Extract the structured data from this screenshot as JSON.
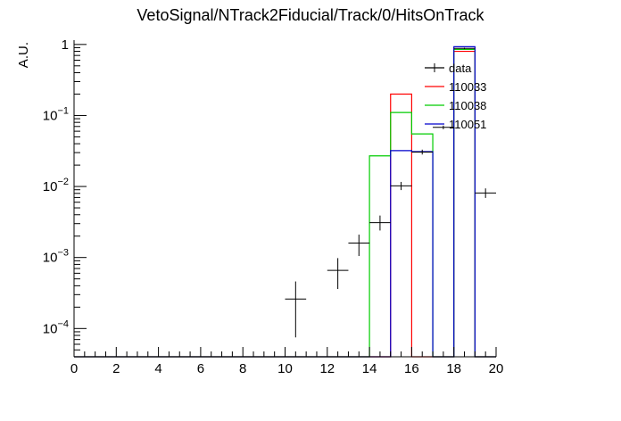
{
  "chart_data": {
    "type": "histogram",
    "title": "VetoSignal/NTrack2Fiducial/Track/0/HitsOnTrack",
    "xlabel": "",
    "ylabel": "A.U.",
    "xlim": [
      0,
      20
    ],
    "ylim": [
      4e-05,
      1.15
    ],
    "yscale": "log",
    "grid": false,
    "legend_position": "top-right",
    "x_ticks": [
      0,
      2,
      4,
      6,
      8,
      10,
      12,
      14,
      16,
      18,
      20
    ],
    "y_ticks": [
      {
        "value": 1,
        "base": "1",
        "exp": ""
      },
      {
        "value": 0.1,
        "base": "10",
        "exp": "−1"
      },
      {
        "value": 0.01,
        "base": "10",
        "exp": "−2"
      },
      {
        "value": 0.001,
        "base": "10",
        "exp": "−3"
      },
      {
        "value": 0.0001,
        "base": "10",
        "exp": "−4"
      }
    ],
    "bin_edges": [
      0,
      1,
      2,
      3,
      4,
      5,
      6,
      7,
      8,
      9,
      10,
      11,
      12,
      13,
      14,
      15,
      16,
      17,
      18,
      19,
      20
    ],
    "series": [
      {
        "name": "110033",
        "color": "#ff0000",
        "kind": "hist",
        "values": [
          0,
          0,
          0,
          0,
          0,
          0,
          0,
          0,
          0,
          0,
          0,
          0,
          0,
          0,
          0,
          0.2,
          0,
          0,
          0.8,
          0
        ]
      },
      {
        "name": "110038",
        "color": "#00cc00",
        "kind": "hist",
        "values": [
          0,
          0,
          0,
          0,
          0,
          0,
          0,
          0,
          0,
          0,
          0,
          0,
          0,
          0,
          0.027,
          0.11,
          0.055,
          0,
          0.85,
          0
        ]
      },
      {
        "name": "110051",
        "color": "#0000cc",
        "kind": "hist",
        "values": [
          0,
          0,
          0,
          0,
          0,
          0,
          0,
          0,
          0,
          0,
          0,
          0,
          0,
          0,
          0,
          0.032,
          0.031,
          0,
          0.93,
          0
        ]
      },
      {
        "name": "data",
        "color": "#000000",
        "kind": "points",
        "points": [
          {
            "x": 10.5,
            "y": 0.00026,
            "ylow": 7.5e-05,
            "yhigh": 0.00046
          },
          {
            "x": 12.5,
            "y": 0.00066,
            "ylow": 0.00036,
            "yhigh": 0.00098
          },
          {
            "x": 13.5,
            "y": 0.0016,
            "ylow": 0.00105,
            "yhigh": 0.0021
          },
          {
            "x": 14.5,
            "y": 0.0031,
            "ylow": 0.0024,
            "yhigh": 0.0039
          },
          {
            "x": 15.5,
            "y": 0.0102,
            "ylow": 0.0089,
            "yhigh": 0.0116
          },
          {
            "x": 16.5,
            "y": 0.0305,
            "ylow": 0.0282,
            "yhigh": 0.033
          },
          {
            "x": 17.5,
            "y": 0.068,
            "ylow": 0.064,
            "yhigh": 0.072
          },
          {
            "x": 18.5,
            "y": 0.88,
            "ylow": 0.86,
            "yhigh": 0.9
          },
          {
            "x": 19.5,
            "y": 0.0081,
            "ylow": 0.0069,
            "yhigh": 0.0094
          }
        ]
      }
    ],
    "legend_entries": [
      "data",
      "110033",
      "110038",
      "110051"
    ]
  }
}
